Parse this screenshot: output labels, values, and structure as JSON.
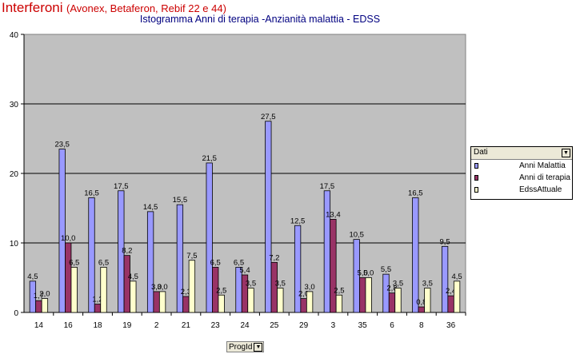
{
  "header": {
    "title": "Interferoni",
    "subtitle": "(Avonex, Betaferon, Rebif 22 e 44)"
  },
  "chart_data": {
    "type": "bar",
    "title": "Istogramma Anni di terapia -Anzianità malattia - EDSS",
    "categories": [
      "14",
      "16",
      "18",
      "19",
      "2",
      "21",
      "23",
      "24",
      "25",
      "29",
      "3",
      "35",
      "6",
      "8",
      "36"
    ],
    "series": [
      {
        "name": "Anni Malattia",
        "color": "#9999ff",
        "values": [
          4.5,
          23.5,
          16.5,
          17.5,
          14.5,
          15.5,
          21.5,
          6.5,
          27.5,
          12.5,
          17.5,
          10.5,
          5.5,
          16.5,
          9.5
        ],
        "labels": [
          "4,5",
          "23,5",
          "16,5",
          "17,5",
          "14,5",
          "15,5",
          "21,5",
          "6,5",
          "27,5",
          "12,5",
          "17,5",
          "10,5",
          "5,5",
          "16,5",
          "9,5"
        ]
      },
      {
        "name": "Anni di terapia",
        "color": "#993366",
        "values": [
          1.7,
          10.0,
          1.2,
          8.2,
          3.0,
          2.3,
          6.5,
          5.4,
          7.2,
          2.0,
          13.4,
          5.0,
          2.8,
          0.8,
          2.4
        ],
        "labels": [
          "1,7",
          "10,0",
          "1,2",
          "8,2",
          "3,0",
          "2,3",
          "6,5",
          "5,4",
          "7,2",
          "2,0",
          "13,4",
          "5,0",
          "2,8",
          "0,8",
          "2,4"
        ]
      },
      {
        "name": "EdssAttuale",
        "color": "#ffffcc",
        "values": [
          2.0,
          6.5,
          6.5,
          4.5,
          3.0,
          7.5,
          2.5,
          3.5,
          3.5,
          3.0,
          2.5,
          5.0,
          3.5,
          3.5,
          4.5
        ],
        "labels": [
          "2,0",
          "6,5",
          "6,5",
          "4,5",
          "3,0",
          "7,5",
          "2,5",
          "3,5",
          "3,5",
          "3,0",
          "2,5",
          "5,0",
          "3,5",
          "3,5",
          "4,5"
        ]
      }
    ],
    "ylim": [
      0,
      40
    ],
    "yticks": [
      0,
      10,
      20,
      30,
      40
    ],
    "grid": true,
    "plot_background": "#c0c0c0",
    "legend_placement": "right"
  },
  "legend": {
    "header": "Dati",
    "items": [
      "Anni Malattia",
      "Anni di terapia",
      "EdssAttuale"
    ]
  },
  "field_button": {
    "label": "ProgId"
  }
}
